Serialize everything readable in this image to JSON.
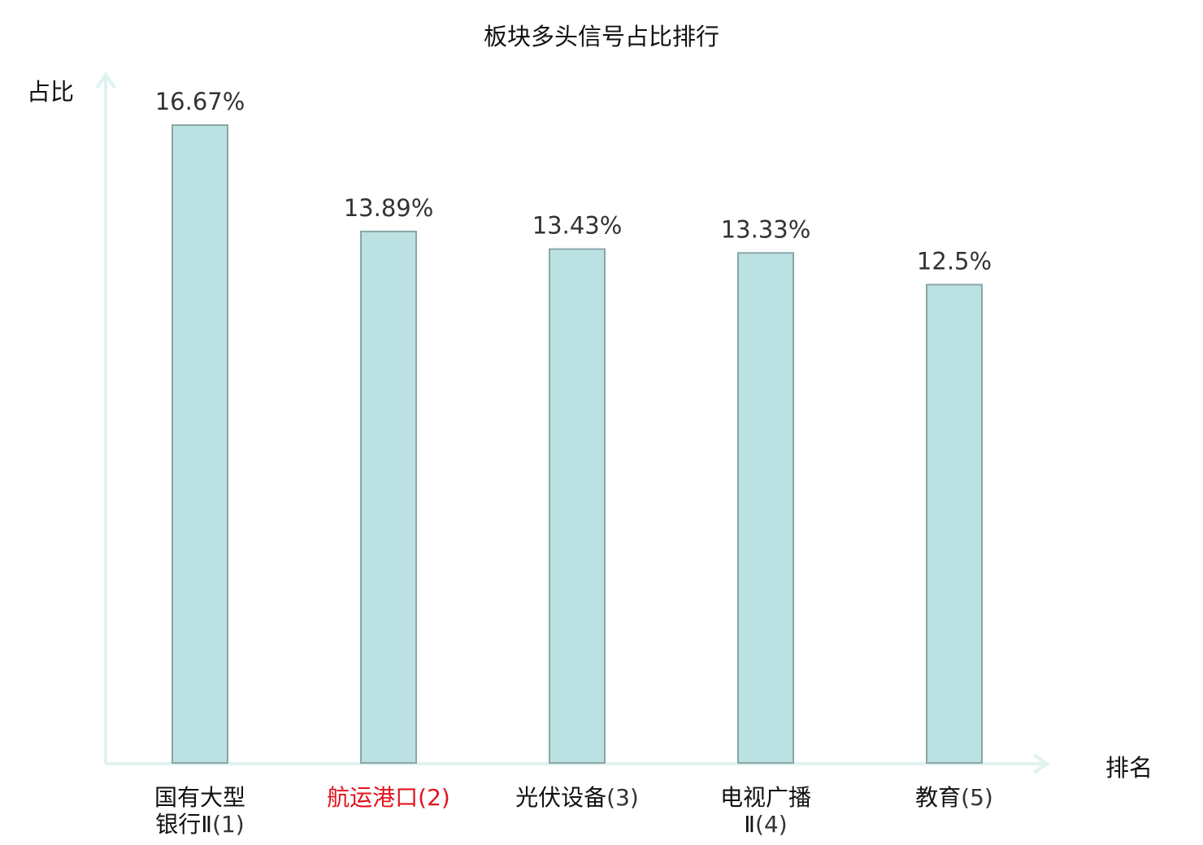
{
  "chart_data": {
    "type": "bar",
    "title": "板块多头信号占比排行",
    "xlabel": "排名",
    "ylabel": "占比",
    "categories": [
      "国有大型银行Ⅱ",
      "航运港口",
      "光伏设备",
      "电视广播Ⅱ",
      "教育"
    ],
    "category_lines": [
      {
        "name_line1": "国有大型",
        "name_line2": "银行Ⅱ",
        "rank": "(1)"
      },
      {
        "name_line1": "航运港口",
        "name_line2": "",
        "rank": "(2)"
      },
      {
        "name_line1": "光伏设备",
        "name_line2": "",
        "rank": "(3)"
      },
      {
        "name_line1": "电视广播",
        "name_line2": "Ⅱ",
        "rank": "(4)"
      },
      {
        "name_line1": "教育",
        "name_line2": "",
        "rank": "(5)"
      }
    ],
    "values": [
      16.67,
      13.89,
      13.43,
      13.33,
      12.5
    ],
    "value_labels": [
      "16.67%",
      "13.89%",
      "13.43%",
      "13.33%",
      "12.5%"
    ],
    "highlight_index": 1,
    "ylim": [
      0,
      16.67
    ],
    "grid": false,
    "legend": "none",
    "colors": {
      "bar_fill": "#bce1e3",
      "bar_stroke": "#8aa6a6",
      "axis": "#dff2ef",
      "highlight_label": "#e0141e"
    }
  }
}
